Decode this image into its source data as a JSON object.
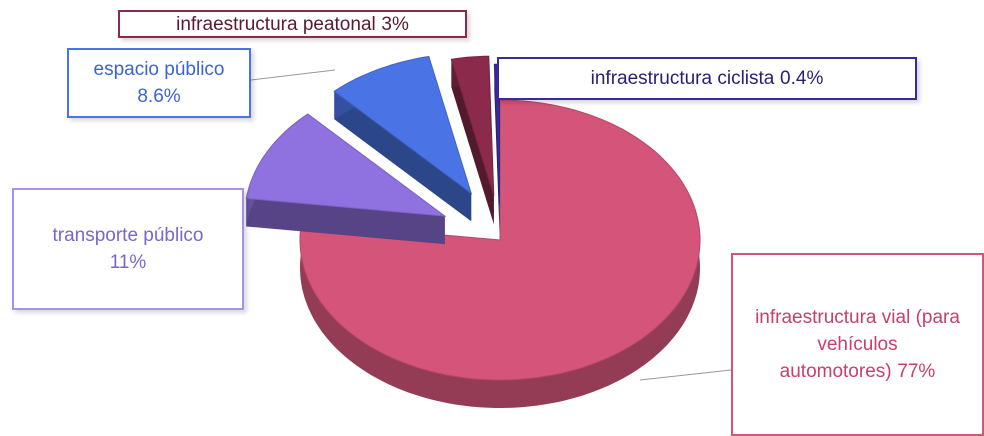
{
  "chart_data": {
    "type": "pie",
    "categories": [
      "infraestructura vial (para vehículos automotores)",
      "transporte público",
      "espacio público",
      "infraestructura peatonal",
      "infraestructura ciclista"
    ],
    "values": [
      77,
      11,
      8.6,
      3,
      0.4
    ],
    "value_labels": [
      "77%",
      "11%",
      "8.6%",
      "3%",
      "0.4%"
    ],
    "colors": [
      "#d4547a",
      "#8f72e0",
      "#4a74e6",
      "#8b2a4a",
      "#3b2a9a"
    ]
  }
}
